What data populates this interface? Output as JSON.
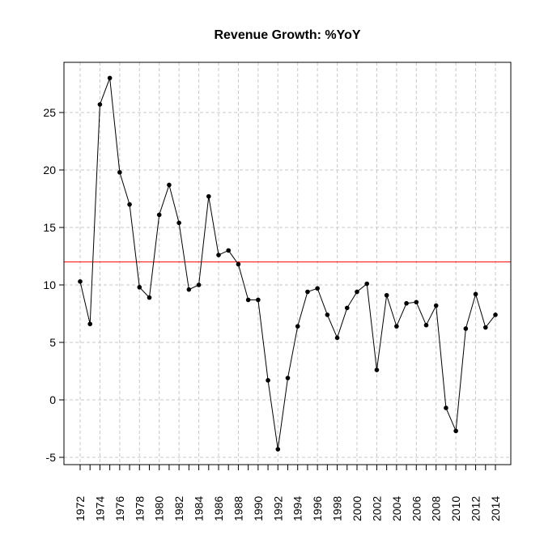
{
  "chart_data": {
    "type": "line",
    "title": "Revenue Growth: %YoY",
    "xlabel": "",
    "ylabel": "",
    "x": [
      1972,
      1973,
      1974,
      1975,
      1976,
      1977,
      1978,
      1979,
      1980,
      1981,
      1982,
      1983,
      1984,
      1985,
      1986,
      1987,
      1988,
      1989,
      1990,
      1991,
      1992,
      1993,
      1994,
      1995,
      1996,
      1997,
      1998,
      1999,
      2000,
      2001,
      2002,
      2003,
      2004,
      2005,
      2006,
      2007,
      2008,
      2009,
      2010,
      2011,
      2012,
      2013,
      2014
    ],
    "values": [
      10.3,
      6.6,
      25.7,
      28.0,
      19.8,
      17.0,
      9.8,
      8.9,
      16.1,
      18.7,
      15.4,
      9.6,
      10.0,
      17.7,
      12.6,
      13.0,
      11.8,
      8.7,
      8.7,
      1.7,
      -4.3,
      1.9,
      6.4,
      9.4,
      9.7,
      7.4,
      5.4,
      8.0,
      9.4,
      10.1,
      2.6,
      9.1,
      6.4,
      8.4,
      8.5,
      6.5,
      8.2,
      -0.7,
      -2.7,
      6.2,
      9.2,
      6.3,
      7.4
    ],
    "xticks": [
      "1972",
      "1974",
      "1976",
      "1978",
      "1980",
      "1982",
      "1984",
      "1986",
      "1988",
      "1990",
      "1992",
      "1994",
      "1996",
      "1998",
      "2000",
      "2002",
      "2004",
      "2006",
      "2008",
      "2010",
      "2012",
      "2014"
    ],
    "yticks": [
      "-5",
      "0",
      "5",
      "10",
      "15",
      "20",
      "25"
    ],
    "ylim": [
      -5.5,
      29.5
    ],
    "xlim": [
      1970.4,
      2015.6
    ],
    "reference_line": 12.0,
    "grid": true,
    "colors": {
      "line": "#000000",
      "reference": "#ff0000",
      "grid": "#c8c8c8"
    }
  }
}
